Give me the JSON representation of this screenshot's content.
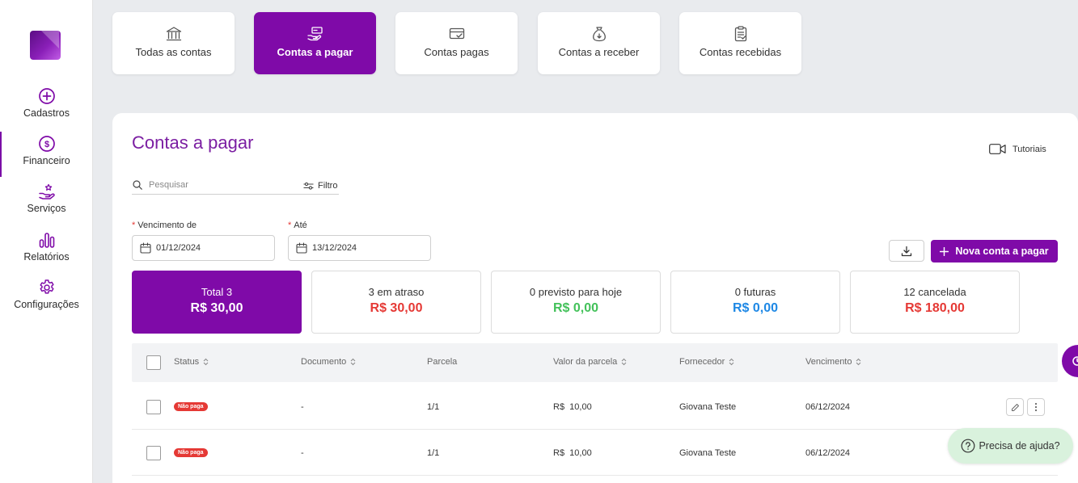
{
  "sidebar": {
    "items": [
      {
        "label": "Cadastros",
        "icon": "plus-circle-icon"
      },
      {
        "label": "Financeiro",
        "icon": "dollar-circle-icon"
      },
      {
        "label": "Serviços",
        "icon": "hand-star-icon"
      },
      {
        "label": "Relatórios",
        "icon": "bar-chart-icon"
      },
      {
        "label": "Configurações",
        "icon": "gear-icon"
      }
    ]
  },
  "top_tabs": [
    {
      "label": "Todas as contas",
      "icon": "bank-icon"
    },
    {
      "label": "Contas a pagar",
      "icon": "hand-money-icon",
      "active": true
    },
    {
      "label": "Contas pagas",
      "icon": "card-check-icon"
    },
    {
      "label": "Contas a receber",
      "icon": "money-bag-icon"
    },
    {
      "label": "Contas recebidas",
      "icon": "clipboard-check-icon"
    }
  ],
  "main": {
    "title": "Contas a pagar",
    "tutorials_label": "Tutoriais",
    "search_placeholder": "Pesquisar",
    "filter_label": "Filtro",
    "date_from_label": "Vencimento de",
    "date_from_value": "01/12/2024",
    "date_to_label": "Até",
    "date_to_value": "13/12/2024",
    "new_button_label": "Nova conta a pagar"
  },
  "summary_cards": [
    {
      "label": "Total 3",
      "value": "R$ 30,00",
      "color": "#ffffff",
      "active": true
    },
    {
      "label": "3 em atraso",
      "value": "R$ 30,00",
      "color": "#e53935"
    },
    {
      "label": "0 previsto para hoje",
      "value": "R$ 0,00",
      "color": "#43c15a"
    },
    {
      "label": "0 futuras",
      "value": "R$ 0,00",
      "color": "#1e88e5"
    },
    {
      "label": "12 cancelada",
      "value": "R$ 180,00",
      "color": "#e53935"
    }
  ],
  "table": {
    "columns": [
      "Status",
      "Documento",
      "Parcela",
      "Valor da parcela",
      "Fornecedor",
      "Vencimento"
    ],
    "rows": [
      {
        "status": "Não paga",
        "documento": "-",
        "parcela": "1/1",
        "valor": "R$  10,00",
        "fornecedor": "Giovana Teste",
        "vencimento": "06/12/2024"
      },
      {
        "status": "Não paga",
        "documento": "-",
        "parcela": "1/1",
        "valor": "R$  10,00",
        "fornecedor": "Giovana Teste",
        "vencimento": "06/12/2024"
      }
    ]
  },
  "help": {
    "label": "Precisa de ajuda?"
  },
  "colors": {
    "accent": "#7f0aa8",
    "danger": "#e53935",
    "success": "#43c15a",
    "info": "#1e88e5",
    "help_bg": "#d9f2dd"
  }
}
